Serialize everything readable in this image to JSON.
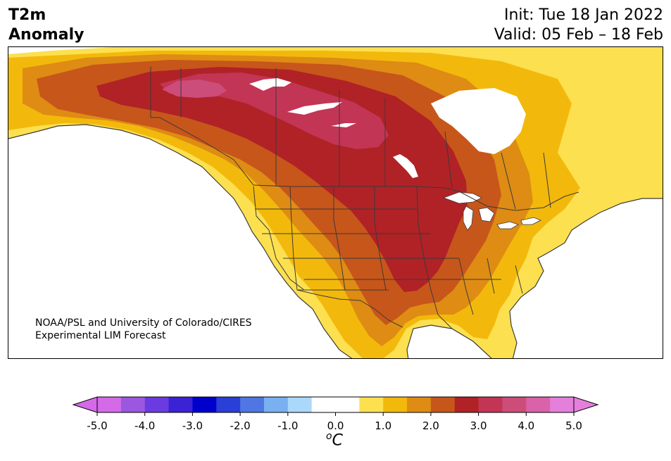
{
  "header": {
    "title_line1": "T2m",
    "title_line2": "Anomaly",
    "init_text": "Init: Tue 18 Jan 2022",
    "valid_text": "Valid: 05 Feb – 18 Feb"
  },
  "credit": {
    "line1": "NOAA/PSL and University of Colorado/CIRES",
    "line2": "Experimental LIM Forecast"
  },
  "colorbar": {
    "unit_sup": "o",
    "unit_base": "C",
    "tick_labels": [
      "-5.0",
      "-4.0",
      "-3.0",
      "-2.0",
      "-1.0",
      "0.0",
      "1.0",
      "2.0",
      "3.0",
      "4.0",
      "5.0"
    ],
    "colors": [
      "#d46ae8",
      "#9b57e0",
      "#6a3be0",
      "#3b22d4",
      "#0000cd",
      "#2a3ed8",
      "#4f76e3",
      "#78b0f0",
      "#aad8fa",
      "#ffffff",
      "#ffffff",
      "#fde050",
      "#f2b90c",
      "#de8c14",
      "#c7561b",
      "#b02226",
      "#c23555",
      "#cc4c7a",
      "#da62a8",
      "#e57fdc"
    ],
    "under_color": "#d46ae8",
    "over_color": "#e57fdc"
  },
  "map": {
    "land_base_color": "#fde050",
    "background_color": "#ffffff",
    "boundary_color": "#3a3a3a"
  }
}
